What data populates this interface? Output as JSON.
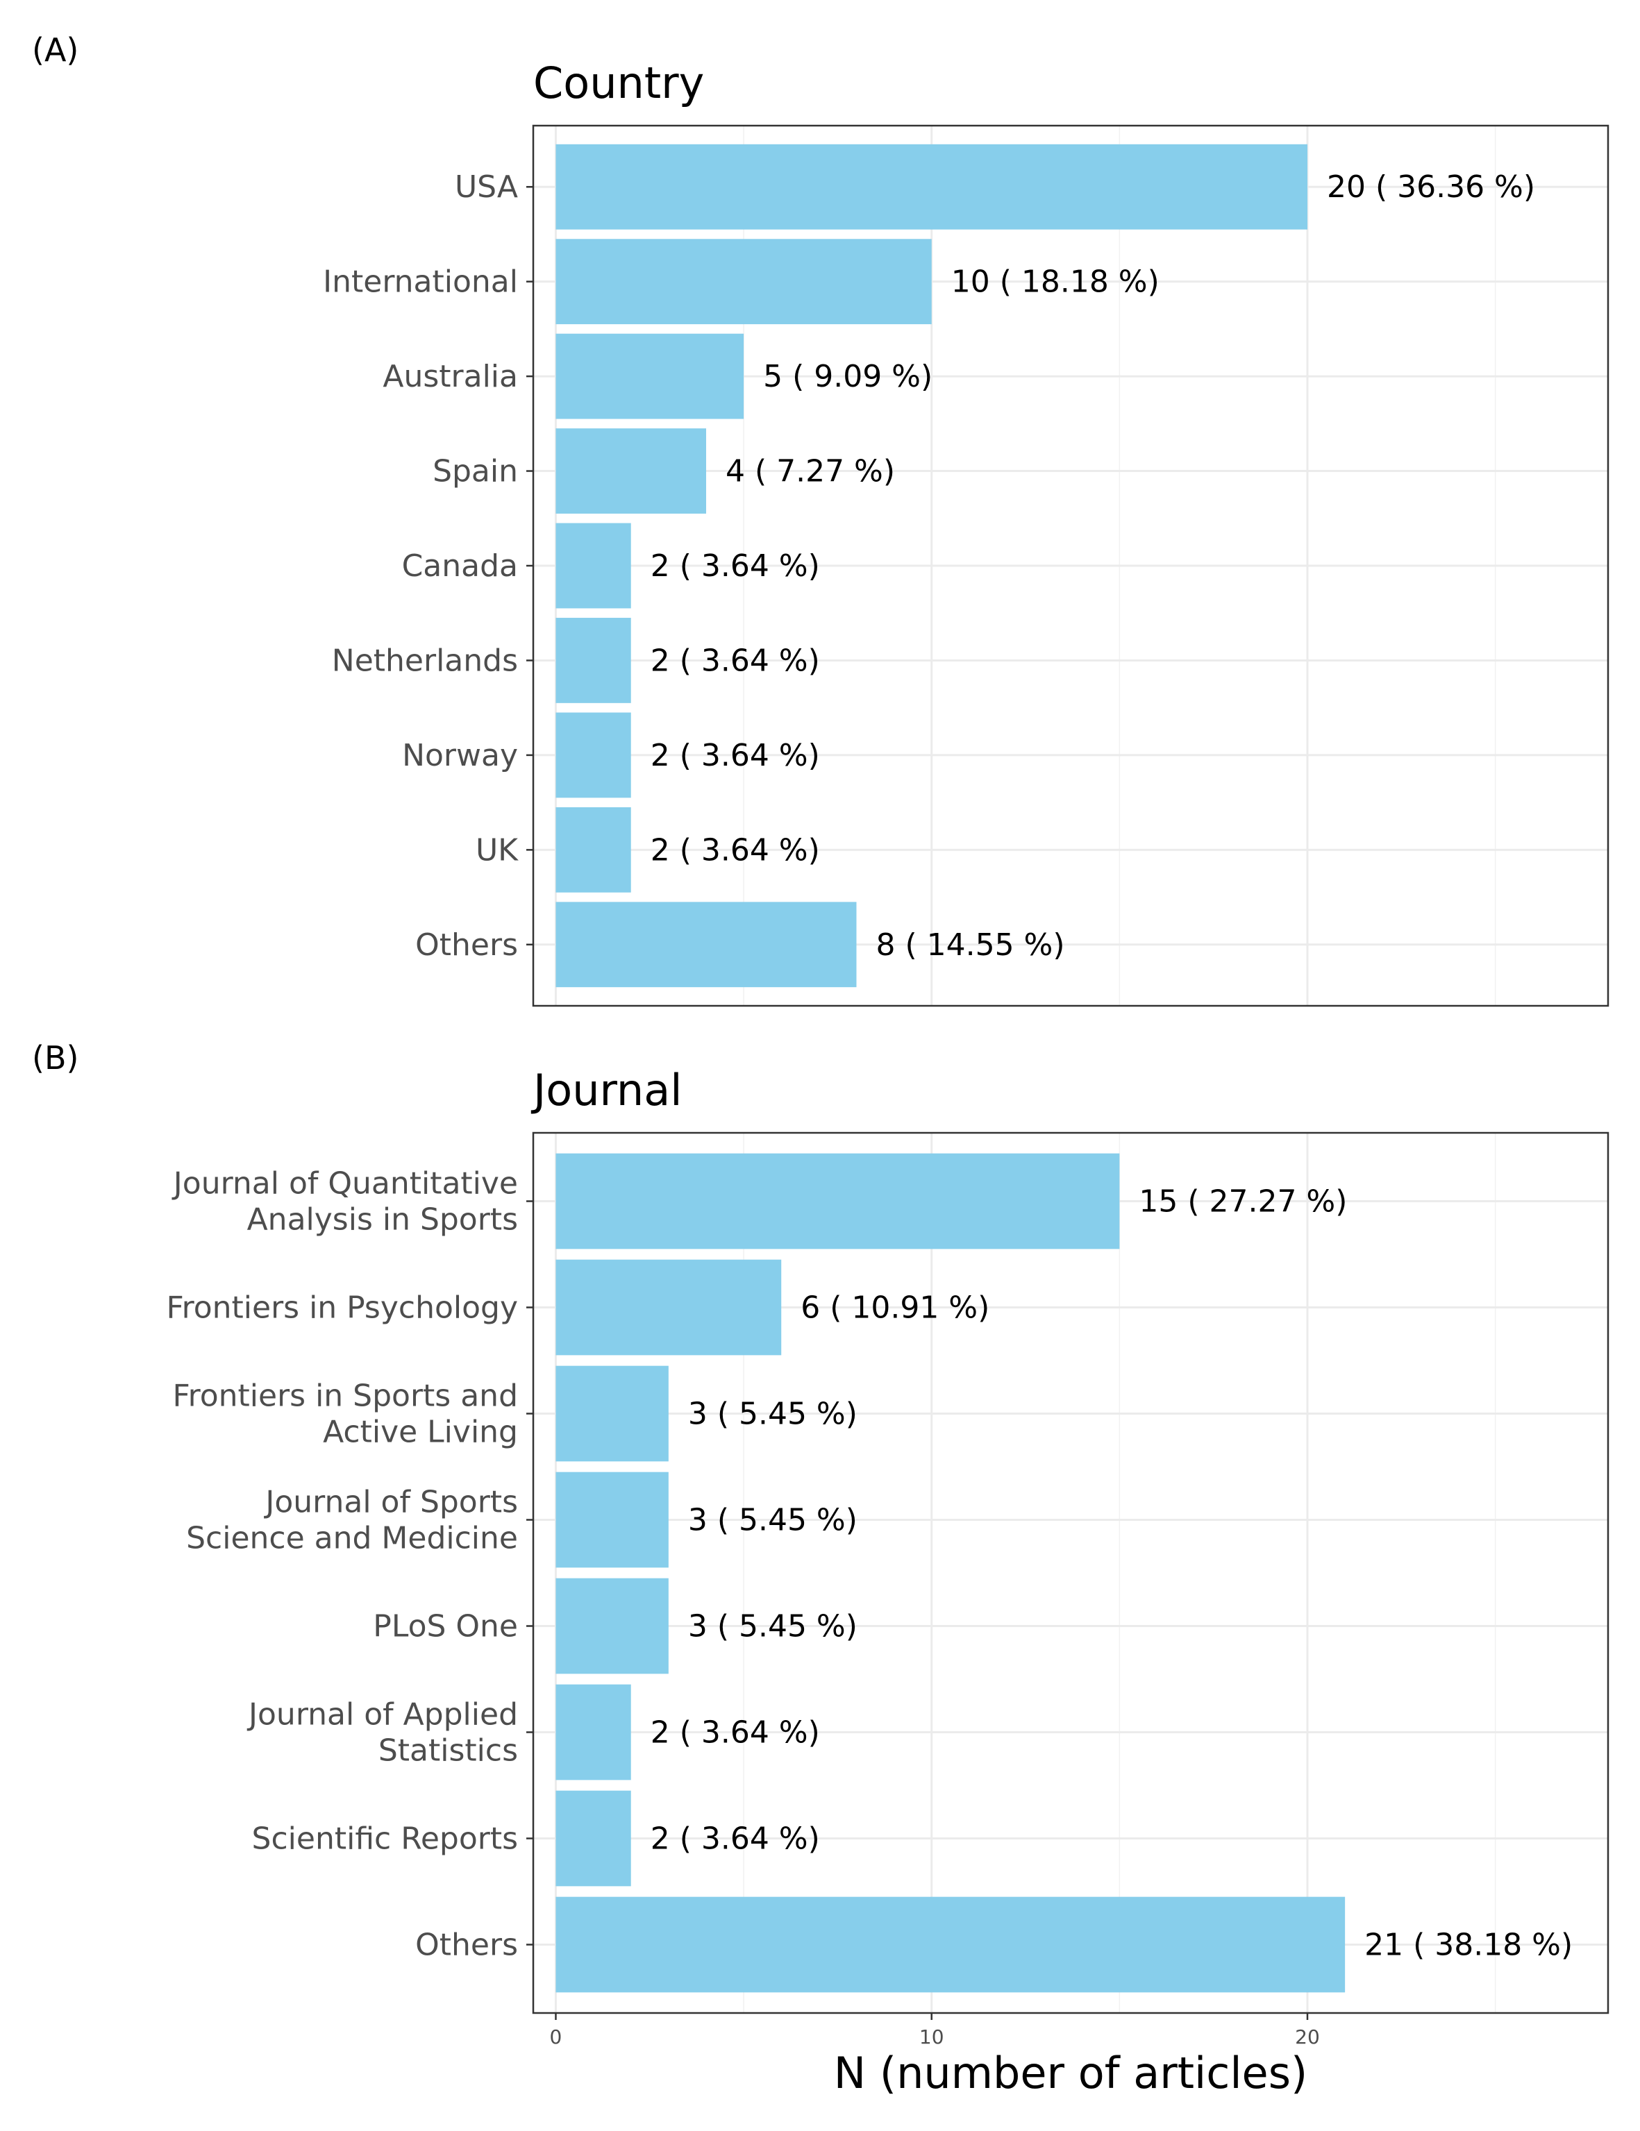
{
  "x_axis": {
    "title": "N (number of articles)",
    "ticks": [
      0,
      10,
      20
    ],
    "range": [
      -0.6,
      28.0
    ]
  },
  "chart_data": [
    {
      "type": "bar",
      "orientation": "horizontal",
      "panel_tag": "(A)",
      "title": "Country",
      "categories": [
        "USA",
        "International",
        "Australia",
        "Spain",
        "Canada",
        "Netherlands",
        "Norway",
        "UK",
        "Others"
      ],
      "values": [
        20,
        10,
        5,
        4,
        2,
        2,
        2,
        2,
        8
      ],
      "value_labels": [
        "20  ( 36.36 %)",
        "10  ( 18.18 %)",
        "5  ( 9.09 %)",
        "4  ( 7.27 %)",
        "2  ( 3.64 %)",
        "2  ( 3.64 %)",
        "2  ( 3.64 %)",
        "2  ( 3.64 %)",
        "8  ( 14.55 %)"
      ],
      "xlim": [
        0,
        28
      ],
      "grid": true,
      "bar_color": "#87ceeb"
    },
    {
      "type": "bar",
      "orientation": "horizontal",
      "panel_tag": "(B)",
      "title": "Journal",
      "categories": [
        "Journal of Quantitative\nAnalysis in Sports",
        "Frontiers in Psychology",
        "Frontiers in Sports and\nActive Living",
        "Journal of Sports\nScience and Medicine",
        "PLoS One",
        "Journal of Applied\nStatistics",
        "Scientific Reports",
        "Others"
      ],
      "values": [
        15,
        6,
        3,
        3,
        3,
        2,
        2,
        21
      ],
      "value_labels": [
        "15  ( 27.27 %)",
        "6  ( 10.91 %)",
        "3  ( 5.45 %)",
        "3  ( 5.45 %)",
        "3  ( 5.45 %)",
        "2  ( 3.64 %)",
        "2  ( 3.64 %)",
        "21  ( 38.18 %)"
      ],
      "xlim": [
        0,
        28
      ],
      "grid": true,
      "bar_color": "#87ceeb"
    }
  ]
}
